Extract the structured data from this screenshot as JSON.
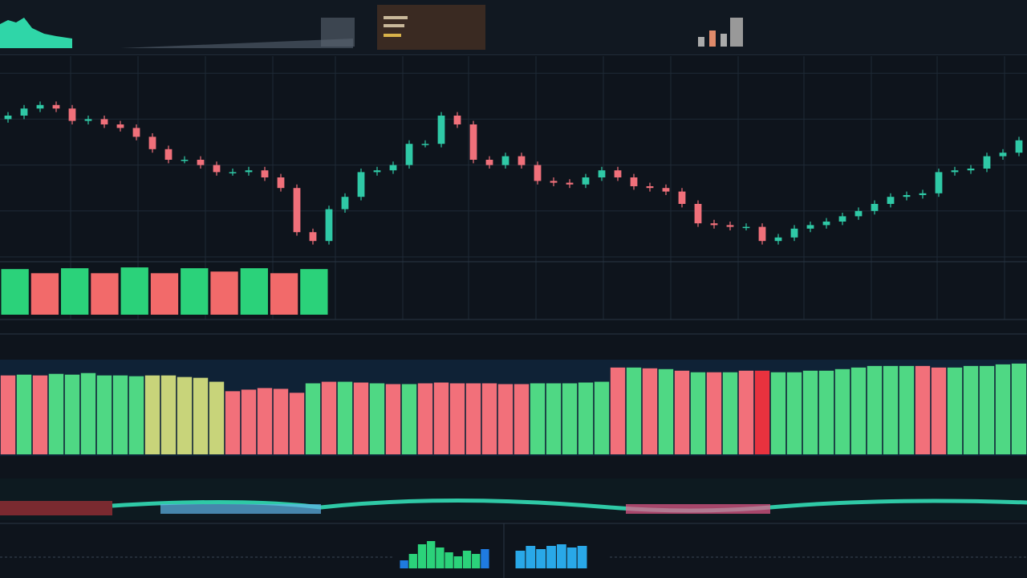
{
  "chart_data": [
    {
      "type": "candlestick",
      "open": [
        78,
        80,
        84,
        86,
        84,
        77,
        78,
        75,
        73,
        68,
        61,
        55,
        55,
        52,
        48,
        48,
        49,
        45,
        39,
        14,
        9,
        27,
        34,
        48,
        49,
        52,
        64,
        64,
        80,
        75,
        55,
        52,
        57,
        52,
        43,
        42,
        41,
        45,
        49,
        45,
        40,
        39,
        37,
        30,
        19,
        18,
        17,
        17,
        9,
        11,
        16,
        18,
        20,
        23,
        26,
        30,
        34,
        35,
        36,
        48,
        49,
        50,
        57,
        59
      ],
      "high": [
        82,
        86,
        88,
        88,
        86,
        80,
        80,
        77,
        75,
        70,
        63,
        57,
        57,
        54,
        50,
        51,
        51,
        47,
        41,
        16,
        29,
        36,
        50,
        51,
        54,
        66,
        66,
        82,
        82,
        77,
        57,
        59,
        59,
        54,
        45,
        44,
        47,
        51,
        51,
        47,
        42,
        41,
        39,
        32,
        21,
        20,
        19,
        19,
        13,
        18,
        20,
        22,
        25,
        28,
        32,
        36,
        37,
        38,
        50,
        51,
        52,
        59,
        61,
        68
      ],
      "low": [
        76,
        78,
        82,
        82,
        75,
        75,
        73,
        71,
        66,
        59,
        53,
        53,
        50,
        46,
        46,
        46,
        43,
        37,
        12,
        7,
        7,
        25,
        32,
        46,
        47,
        50,
        62,
        62,
        73,
        53,
        50,
        50,
        50,
        41,
        40,
        39,
        39,
        43,
        43,
        38,
        37,
        35,
        28,
        17,
        16,
        15,
        15,
        7,
        7,
        9,
        14,
        16,
        18,
        21,
        24,
        28,
        32,
        33,
        34,
        46,
        47,
        48,
        55,
        57
      ],
      "close": [
        80,
        84,
        86,
        84,
        77,
        78,
        75,
        73,
        68,
        61,
        55,
        55,
        52,
        48,
        48,
        49,
        45,
        39,
        14,
        9,
        27,
        34,
        48,
        49,
        52,
        64,
        64,
        80,
        75,
        55,
        52,
        57,
        52,
        43,
        42,
        41,
        45,
        49,
        45,
        40,
        39,
        37,
        30,
        19,
        18,
        17,
        17,
        9,
        11,
        16,
        18,
        20,
        23,
        26,
        30,
        34,
        35,
        36,
        48,
        49,
        50,
        57,
        59,
        66
      ],
      "up_color": "#2fc9a6",
      "down_color": "#f0707a",
      "ylim": [
        0,
        110
      ],
      "yticks": [
        0,
        26,
        52,
        78,
        104
      ],
      "grid": true
    },
    {
      "type": "bar",
      "values": [
        55,
        50,
        56,
        50,
        57,
        50,
        56,
        52,
        56,
        50,
        55
      ],
      "colors": [
        "#2bd27a",
        "#f26a6a",
        "#2bd27a",
        "#f26a6a",
        "#2bd27a",
        "#f26a6a",
        "#2bd27a",
        "#f26a6a",
        "#2bd27a",
        "#f26a6a",
        "#2bd27a"
      ],
      "ylim": [
        0,
        60
      ]
    },
    {
      "type": "bar",
      "values": [
        100,
        101,
        100,
        102,
        101,
        103,
        100,
        100,
        99,
        100,
        100,
        98,
        97,
        92,
        80,
        82,
        84,
        83,
        78,
        90,
        92,
        92,
        91,
        90,
        89,
        89,
        90,
        91,
        90,
        90,
        90,
        89,
        89,
        90,
        90,
        90,
        91,
        92,
        110,
        110,
        109,
        108,
        106,
        104,
        104,
        104,
        106,
        106,
        104,
        104,
        106,
        106,
        108,
        110,
        112,
        112,
        112,
        112,
        110,
        110,
        112,
        112,
        114,
        115
      ],
      "colors": [
        "#f2707a",
        "#4fd884",
        "#f2707a",
        "#4fd884",
        "#4fd884",
        "#4fd884",
        "#4fd884",
        "#4fd884",
        "#4fd884",
        "#c8d47a",
        "#c8d47a",
        "#c8d47a",
        "#c8d47a",
        "#c8d47a",
        "#f2707a",
        "#f2707a",
        "#f2707a",
        "#f2707a",
        "#f2707a",
        "#4fd884",
        "#f2707a",
        "#4fd884",
        "#f2707a",
        "#4fd884",
        "#f2707a",
        "#4fd884",
        "#f2707a",
        "#f2707a",
        "#f2707a",
        "#f2707a",
        "#f2707a",
        "#f2707a",
        "#f2707a",
        "#4fd884",
        "#4fd884",
        "#4fd884",
        "#4fd884",
        "#4fd884",
        "#f2707a",
        "#4fd884",
        "#f2707a",
        "#4fd884",
        "#f2707a",
        "#4fd884",
        "#f2707a",
        "#4fd884",
        "#f2707a",
        "#e8323e",
        "#4fd884",
        "#4fd884",
        "#4fd884",
        "#4fd884",
        "#4fd884",
        "#4fd884",
        "#4fd884",
        "#4fd884",
        "#4fd884",
        "#f2707a",
        "#f2707a",
        "#4fd884",
        "#4fd884",
        "#4fd884",
        "#4fd884",
        "#4fd884"
      ],
      "ylim": [
        0,
        120
      ]
    },
    {
      "type": "bar",
      "values": [
        10,
        18,
        30,
        34,
        26,
        20,
        15,
        22,
        18,
        24
      ],
      "colors": [
        "#1f7be0",
        "#2bd27a",
        "#2bd27a",
        "#2bd27a",
        "#2bd27a",
        "#2bd27a",
        "#2bd27a",
        "#2bd27a",
        "#2bd27a",
        "#1f7be0"
      ],
      "ylim": [
        0,
        36
      ]
    },
    {
      "type": "bar",
      "values": [
        22,
        28,
        24,
        28,
        30,
        26,
        28
      ],
      "colors": [
        "#29a8e8",
        "#29a8e8",
        "#29a8e8",
        "#29a8e8",
        "#29a8e8",
        "#29a8e8",
        "#29a8e8"
      ],
      "ylim": [
        0,
        36
      ]
    }
  ]
}
